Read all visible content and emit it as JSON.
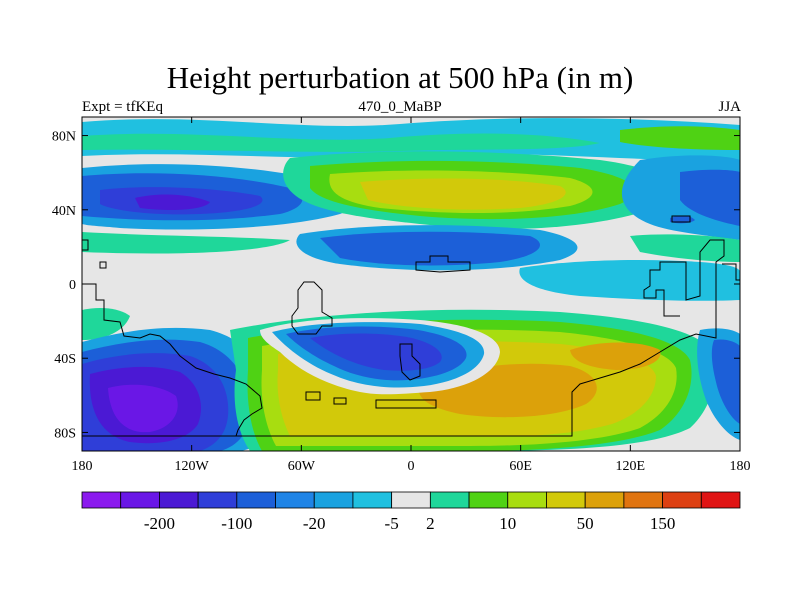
{
  "title": "Height perturbation at 500 hPa (in m)",
  "subtitle_left": "Expt = tfKEq",
  "subtitle_center": "470_0_MaBP",
  "subtitle_right": "JJA",
  "lon_ticks": [
    {
      "value": -180,
      "label": "180"
    },
    {
      "value": -120,
      "label": "120W"
    },
    {
      "value": -60,
      "label": "60W"
    },
    {
      "value": 0,
      "label": "0"
    },
    {
      "value": 60,
      "label": "60E"
    },
    {
      "value": 120,
      "label": "120E"
    },
    {
      "value": 180,
      "label": "180"
    }
  ],
  "lat_ticks": [
    {
      "value": 80,
      "label": "80N"
    },
    {
      "value": 40,
      "label": "40N"
    },
    {
      "value": 0,
      "label": "0"
    },
    {
      "value": -40,
      "label": "40S"
    },
    {
      "value": -80,
      "label": "80S"
    }
  ],
  "colorbar": {
    "colors": [
      "#8b1aee",
      "#6a17e6",
      "#4b19d4",
      "#2f3ed8",
      "#1c5fd8",
      "#1f84e6",
      "#1aa2e0",
      "#20c0e0",
      "#e6e6e6",
      "#1fd79a",
      "#4fd214",
      "#a8dd10",
      "#d2c90a",
      "#dca10a",
      "#e07410",
      "#dd4012",
      "#e01414"
    ],
    "labels": [
      "-200",
      "-100",
      "-20",
      "-5",
      "2",
      "10",
      "50",
      "150"
    ],
    "label_after_box": [
      1,
      3,
      5,
      7,
      8,
      10,
      12,
      14
    ]
  },
  "colors": {
    "background_field": "#e6e6e6",
    "coastline": "#000000"
  }
}
